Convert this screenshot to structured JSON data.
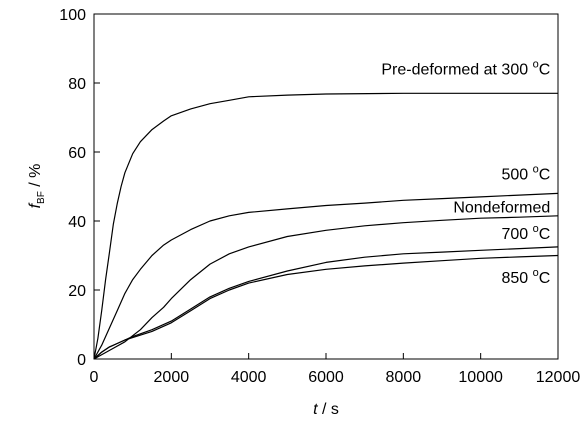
{
  "chart_data": {
    "type": "line",
    "xlabel": {
      "var": "t",
      "rest": " / s"
    },
    "ylabel": {
      "var": "f",
      "sub": "BF",
      "rest": " / %"
    },
    "xlim": [
      0,
      12000
    ],
    "ylim": [
      0,
      100
    ],
    "xticks": [
      0,
      2000,
      4000,
      6000,
      8000,
      10000,
      12000
    ],
    "yticks": [
      0,
      20,
      40,
      60,
      80,
      100
    ],
    "grid": false,
    "legend": "none",
    "series": [
      {
        "name": "Pre-deformed at 300 °C",
        "label": {
          "main": "Pre-deformed at 300 ",
          "sup": "o",
          "unit": "C"
        },
        "x": [
          0,
          100,
          200,
          300,
          400,
          500,
          600,
          700,
          800,
          1000,
          1200,
          1500,
          1800,
          2000,
          2500,
          3000,
          3500,
          4000,
          5000,
          6000,
          8000,
          10000,
          12000
        ],
        "y": [
          0,
          6,
          14,
          23,
          31,
          39,
          45,
          50,
          54,
          59.5,
          63,
          66.5,
          69,
          70.5,
          72.5,
          74,
          75,
          76,
          76.5,
          76.8,
          77,
          77,
          77
        ]
      },
      {
        "name": "500 °C",
        "label": {
          "main": "500 ",
          "sup": "o",
          "unit": "C"
        },
        "x": [
          0,
          200,
          400,
          600,
          800,
          1000,
          1200,
          1500,
          1800,
          2000,
          2500,
          3000,
          3500,
          4000,
          5000,
          6000,
          7000,
          8000,
          9000,
          10000,
          11000,
          12000
        ],
        "y": [
          0,
          4,
          9,
          14,
          19,
          23,
          26,
          30,
          33,
          34.5,
          37.5,
          40,
          41.5,
          42.5,
          43.5,
          44.5,
          45.2,
          46,
          46.5,
          47,
          47.5,
          48
        ]
      },
      {
        "name": "Nondeformed",
        "label": {
          "main": "Nondeformed",
          "sup": "",
          "unit": ""
        },
        "x": [
          0,
          400,
          800,
          1200,
          1500,
          1800,
          2000,
          2500,
          3000,
          3500,
          4000,
          5000,
          6000,
          7000,
          8000,
          9000,
          10000,
          11000,
          12000
        ],
        "y": [
          0,
          2.5,
          5,
          8.5,
          12,
          15,
          17.5,
          23,
          27.5,
          30.5,
          32.5,
          35.5,
          37.3,
          38.6,
          39.5,
          40.2,
          40.8,
          41.1,
          41.5
        ]
      },
      {
        "name": "700 °C",
        "label": {
          "main": "700 ",
          "sup": "o",
          "unit": "C"
        },
        "x": [
          0,
          200,
          400,
          600,
          800,
          1000,
          1500,
          2000,
          2500,
          3000,
          3500,
          4000,
          5000,
          6000,
          7000,
          8000,
          9000,
          10000,
          11000,
          12000
        ],
        "y": [
          0,
          2,
          3.5,
          4.5,
          5.5,
          6.5,
          8.5,
          11,
          14.5,
          18,
          20.5,
          22.5,
          25.5,
          28,
          29.5,
          30.5,
          31,
          31.5,
          32,
          32.5
        ]
      },
      {
        "name": "850 °C",
        "label": {
          "main": "850 ",
          "sup": "o",
          "unit": "C"
        },
        "x": [
          0,
          200,
          400,
          600,
          800,
          1000,
          1500,
          2000,
          2500,
          3000,
          3500,
          4000,
          5000,
          6000,
          7000,
          8000,
          9000,
          10000,
          11000,
          12000
        ],
        "y": [
          0,
          2,
          3.5,
          4.5,
          5.5,
          6.2,
          8,
          10.5,
          14,
          17.5,
          20,
          22,
          24.5,
          26,
          27,
          27.8,
          28.5,
          29.2,
          29.6,
          30
        ]
      }
    ]
  }
}
